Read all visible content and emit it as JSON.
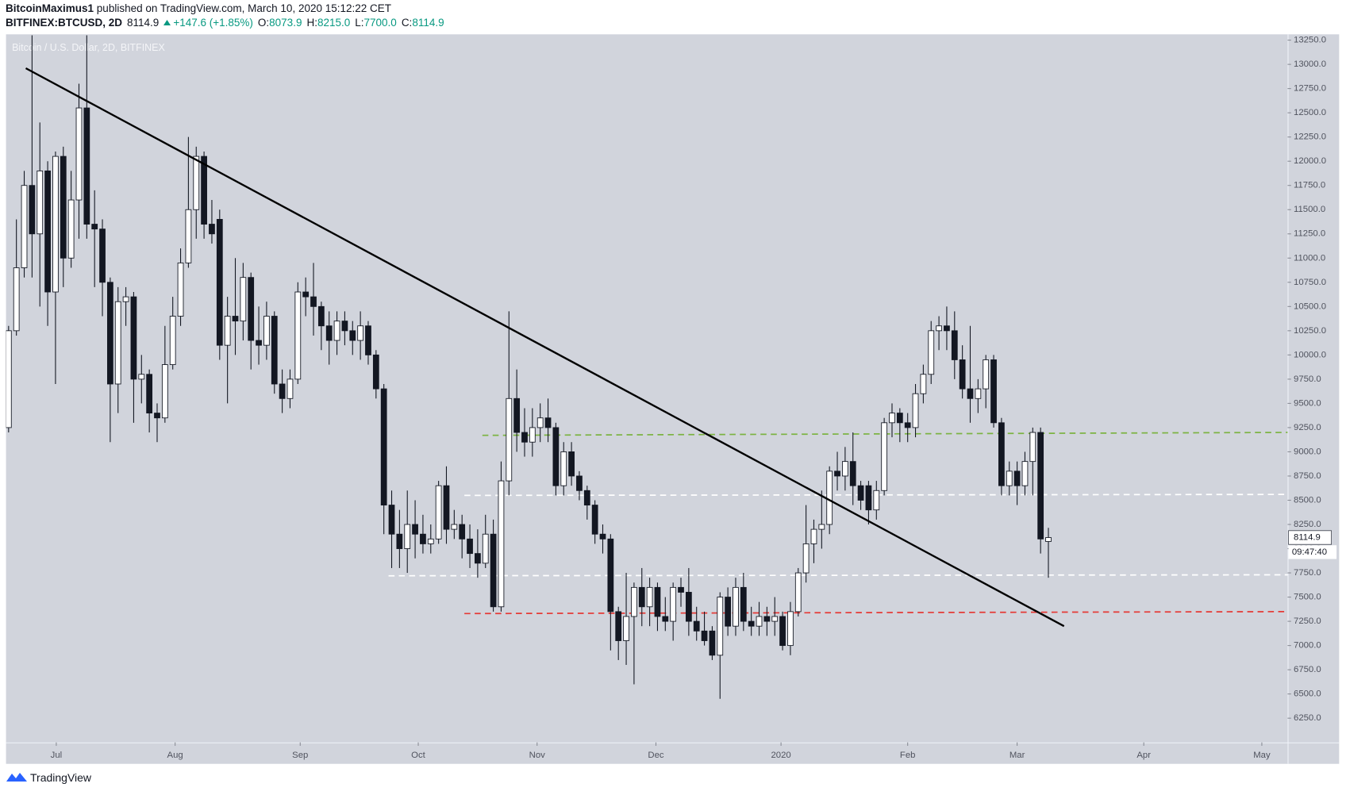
{
  "header": {
    "author": "BitcoinMaximus1",
    "published": "published on TradingView.com, March 10, 2020 15:12:22 CET",
    "symbol": "BITFINEX:BTCUSD, 2D",
    "last": "8114.9",
    "change": "+147.6 (+1.85%)",
    "ohlc": [
      {
        "label": "O:",
        "value": "8073.9"
      },
      {
        "label": "H:",
        "value": "8215.0"
      },
      {
        "label": "L:",
        "value": "7700.0"
      },
      {
        "label": "C:",
        "value": "8114.9"
      }
    ]
  },
  "footer": {
    "brand": "TradingView"
  },
  "chart_data": {
    "type": "candlestick",
    "title": "Bitcoin / U.S. Dollar, 2D, BITFINEX",
    "up_color": "#ffffff",
    "down_color": "#131722",
    "wick_color": "#131722",
    "background": "#d1d4dc",
    "grid": false,
    "open": [
      9250,
      10250,
      10900,
      11750,
      11250,
      11900,
      10650,
      12050,
      11000,
      11600,
      12550,
      11350,
      11300,
      10750,
      9700,
      10550,
      10600,
      9750,
      9800,
      9400,
      9350,
      9900,
      10400,
      10950,
      11500,
      12050,
      11350,
      11400,
      10100,
      10400,
      10350,
      10800,
      10150,
      10100,
      10400,
      9700,
      9550,
      9750,
      10650,
      10600,
      10500,
      10300,
      10150,
      10350,
      10250,
      10150,
      10300,
      10000,
      9650,
      8450,
      8150,
      8000,
      8250,
      8150,
      8050,
      8100,
      8650,
      8200,
      8250,
      8100,
      7950,
      7850,
      8150,
      7400,
      8700,
      9550,
      9200,
      9100,
      9250,
      9350,
      9250,
      8650,
      9000,
      8750,
      8600,
      8450,
      8150,
      8100,
      7350,
      7050,
      7300,
      7600,
      7400,
      7600,
      7300,
      7250,
      7600,
      7550,
      7250,
      7150,
      7150,
      6900,
      7500,
      7200,
      7600,
      7250,
      7200,
      7300,
      7250,
      7300,
      7000,
      7350,
      7750,
      8050,
      8200,
      8250,
      8800,
      8750,
      8900,
      8650,
      8650,
      8400,
      8600,
      9300,
      9400,
      9300,
      9250,
      9600,
      9800,
      10250,
      10300,
      10250,
      9950,
      9650,
      9550,
      9650,
      9950,
      9300,
      8650,
      8800,
      8650,
      8900,
      9200,
      8073.9
    ],
    "high": [
      10300,
      11400,
      11900,
      13300,
      12400,
      12000,
      12100,
      12150,
      11900,
      12800,
      13300,
      11700,
      11400,
      10800,
      10700,
      10700,
      10650,
      10000,
      9850,
      9500,
      10300,
      10600,
      11100,
      12250,
      12150,
      12100,
      11600,
      11500,
      10600,
      11000,
      10950,
      10850,
      10500,
      10550,
      10450,
      9850,
      9850,
      10750,
      10800,
      10950,
      10550,
      10450,
      10450,
      10450,
      10350,
      10450,
      10350,
      10050,
      9700,
      8600,
      8400,
      8600,
      8500,
      8350,
      8250,
      8700,
      8850,
      8400,
      8350,
      8250,
      8200,
      8350,
      8300,
      8900,
      10450,
      9850,
      9450,
      9450,
      9500,
      9550,
      9300,
      9100,
      9100,
      8800,
      8650,
      8500,
      8250,
      8150,
      7400,
      7750,
      7650,
      7800,
      7700,
      7650,
      7500,
      7650,
      7700,
      7800,
      7400,
      7350,
      7200,
      7550,
      7600,
      7700,
      7750,
      7400,
      7450,
      7400,
      7500,
      7350,
      7450,
      7800,
      8450,
      8300,
      8600,
      8850,
      9000,
      9050,
      9200,
      8700,
      8700,
      8700,
      9350,
      9500,
      9450,
      9400,
      9700,
      9900,
      10350,
      10400,
      10500,
      10450,
      10100,
      10300,
      9750,
      10000,
      10000,
      9350,
      8900,
      8900,
      9000,
      9250,
      9250,
      8215
    ],
    "low": [
      9200,
      10200,
      10800,
      10800,
      10500,
      10300,
      9700,
      10700,
      10900,
      11200,
      11200,
      10700,
      10400,
      9100,
      9400,
      10300,
      9300,
      9500,
      9200,
      9100,
      9300,
      9850,
      10300,
      10900,
      11200,
      11200,
      11150,
      9950,
      9500,
      10000,
      10150,
      9850,
      9900,
      9950,
      9600,
      9400,
      9450,
      9700,
      10400,
      10200,
      10050,
      9900,
      10000,
      10100,
      10000,
      9950,
      9900,
      9550,
      8150,
      7800,
      7800,
      7750,
      7900,
      7950,
      7950,
      8050,
      8050,
      8100,
      7900,
      7800,
      7700,
      7800,
      7350,
      7350,
      8550,
      9000,
      8950,
      8950,
      9100,
      9100,
      8550,
      8550,
      8650,
      8500,
      8300,
      8050,
      7950,
      6950,
      6850,
      6800,
      6600,
      7200,
      7200,
      7150,
      7150,
      7050,
      7400,
      7100,
      7050,
      7000,
      6850,
      6450,
      7100,
      7100,
      7150,
      7100,
      7100,
      7100,
      7100,
      6950,
      6900,
      7300,
      7650,
      7850,
      8000,
      8150,
      8600,
      8600,
      8450,
      8400,
      8250,
      8300,
      8550,
      9150,
      9100,
      9100,
      9150,
      9500,
      9700,
      10050,
      10050,
      9750,
      9550,
      9300,
      9400,
      9450,
      9250,
      8550,
      8550,
      8450,
      8550,
      8550,
      7950,
      7700
    ],
    "close": [
      10250,
      10900,
      11750,
      11250,
      11900,
      10650,
      12050,
      11000,
      11600,
      12550,
      11350,
      11300,
      10750,
      9700,
      10550,
      10600,
      9750,
      9800,
      9400,
      9350,
      9900,
      10400,
      10950,
      11500,
      12050,
      11350,
      11250,
      10100,
      10400,
      10350,
      10800,
      10150,
      10100,
      10400,
      9700,
      9550,
      9750,
      10650,
      10600,
      10500,
      10300,
      10150,
      10350,
      10250,
      10150,
      10300,
      10000,
      9650,
      8450,
      8150,
      8000,
      8250,
      8150,
      8050,
      8100,
      8650,
      8200,
      8250,
      8100,
      7950,
      7850,
      8150,
      7400,
      8700,
      9550,
      9200,
      9100,
      9250,
      9350,
      9250,
      8650,
      9000,
      8750,
      8600,
      8450,
      8150,
      8100,
      7350,
      7050,
      7300,
      7600,
      7400,
      7600,
      7300,
      7250,
      7600,
      7550,
      7250,
      7150,
      7050,
      6900,
      7500,
      7200,
      7600,
      7250,
      7200,
      7300,
      7250,
      7300,
      7000,
      7350,
      7750,
      8050,
      8200,
      8250,
      8800,
      8750,
      8900,
      8650,
      8500,
      8400,
      8600,
      9300,
      9400,
      9300,
      9250,
      9600,
      9800,
      10250,
      10300,
      10250,
      9950,
      9650,
      9550,
      9650,
      9950,
      9300,
      8650,
      8800,
      8650,
      8900,
      9200,
      8100,
      8114.9
    ],
    "xlim": [
      -0.33,
      163.6
    ],
    "xticks": [
      {
        "value": 6.1,
        "label": "Jul"
      },
      {
        "value": 21.3,
        "label": "Aug"
      },
      {
        "value": 37.3,
        "label": "Sep"
      },
      {
        "value": 52.4,
        "label": "Oct"
      },
      {
        "value": 67.6,
        "label": "Nov"
      },
      {
        "value": 82.8,
        "label": "Dec"
      },
      {
        "value": 98.8,
        "label": "2020"
      },
      {
        "value": 115.0,
        "label": "Feb"
      },
      {
        "value": 129.0,
        "label": "Mar"
      },
      {
        "value": 145.2,
        "label": "Apr"
      },
      {
        "value": 160.3,
        "label": "May"
      }
    ],
    "ylim": [
      6000,
      13310
    ],
    "yticks": [
      {
        "value": 6250,
        "label": "6250.0"
      },
      {
        "value": 6500,
        "label": "6500.0"
      },
      {
        "value": 6750,
        "label": "6750.0"
      },
      {
        "value": 7000,
        "label": "7000.0"
      },
      {
        "value": 7250,
        "label": "7250.0"
      },
      {
        "value": 7500,
        "label": "7500.0"
      },
      {
        "value": 7750,
        "label": "7750.0"
      },
      {
        "value": 8000,
        "label": "8000.0"
      },
      {
        "value": 8250,
        "label": "8250.0"
      },
      {
        "value": 8500,
        "label": "8500.0"
      },
      {
        "value": 8750,
        "label": "8750.0"
      },
      {
        "value": 9000,
        "label": "9000.0"
      },
      {
        "value": 9250,
        "label": "9250.0"
      },
      {
        "value": 9500,
        "label": "9500.0"
      },
      {
        "value": 9750,
        "label": "9750.0"
      },
      {
        "value": 10000,
        "label": "10000.0"
      },
      {
        "value": 10250,
        "label": "10250.0"
      },
      {
        "value": 10500,
        "label": "10500.0"
      },
      {
        "value": 10750,
        "label": "10750.0"
      },
      {
        "value": 11000,
        "label": "11000.0"
      },
      {
        "value": 11250,
        "label": "11250.0"
      },
      {
        "value": 11500,
        "label": "11500.0"
      },
      {
        "value": 11750,
        "label": "11750.0"
      },
      {
        "value": 12000,
        "label": "12000.0"
      },
      {
        "value": 12250,
        "label": "12250.0"
      },
      {
        "value": 12500,
        "label": "12500.0"
      },
      {
        "value": 12750,
        "label": "12750.0"
      },
      {
        "value": 13000,
        "label": "13000.0"
      },
      {
        "value": 13250,
        "label": "13250.0"
      }
    ],
    "trend_line": {
      "color": "#000000",
      "x": [
        2.2,
        135
      ],
      "y": [
        12960,
        7200
      ]
    },
    "levels": [
      {
        "color": "#7cb342",
        "x": [
          60.6,
          163.6
        ],
        "y": [
          9170,
          9200
        ]
      },
      {
        "color": "#ffffff",
        "x": [
          58.3,
          163.6
        ],
        "y": [
          8550,
          8560
        ]
      },
      {
        "color": "#ffffff",
        "x": [
          48.6,
          163.6
        ],
        "y": [
          7720,
          7730
        ]
      },
      {
        "color": "#e53935",
        "x": [
          58.3,
          163.6
        ],
        "y": [
          7330,
          7350
        ]
      }
    ],
    "price_tag": {
      "label": "8114.9",
      "timer": "09:47:40"
    }
  }
}
